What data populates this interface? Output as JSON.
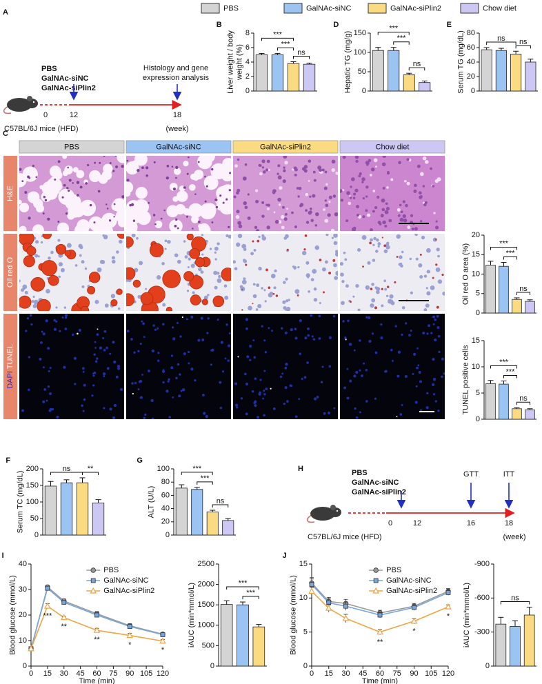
{
  "legend": [
    {
      "name": "PBS",
      "color": "#d4d4d4"
    },
    {
      "name": "GalNAc-siNC",
      "color": "#9cc4f2"
    },
    {
      "name": "GalNAc-siPlin2",
      "color": "#fbdb82"
    },
    {
      "name": "Chow diet",
      "color": "#cdc8f3"
    }
  ],
  "timeline_a": {
    "panel": "A",
    "groups": [
      {
        "name": "PBS",
        "color": "#a8a8a8"
      },
      {
        "name": "GalNAc-siNC",
        "color": "#7b8fd2"
      },
      {
        "name": "GalNAc-siPlin2",
        "color": "#c6ad6a"
      }
    ],
    "weeks": [
      0,
      12,
      18
    ],
    "event": [
      "Histology and gene",
      "expression analysis"
    ],
    "mice": "C57BL/6J mice (HFD)",
    "unit": "(week)"
  },
  "histology": {
    "panel": "C",
    "rows": [
      {
        "parts": [
          "H&E"
        ],
        "colors": [
          "#ffffff"
        ]
      },
      {
        "parts": [
          "Oil red O"
        ],
        "colors": [
          "#ffffff"
        ]
      },
      {
        "parts": [
          "DAPI",
          "TUNEL"
        ],
        "colors": [
          "#2a2ad6",
          "#ffffff"
        ]
      }
    ]
  },
  "timeline_h": {
    "panel": "H",
    "groups": [
      {
        "name": "PBS",
        "color": "#a8a8a8"
      },
      {
        "name": "GalNAc-siNC",
        "color": "#7b8fd2"
      },
      {
        "name": "GalNAc-siPlin2",
        "color": "#c6ad6a"
      }
    ],
    "weeks": [
      0,
      12,
      16,
      18
    ],
    "events": [
      "GTT",
      "ITT"
    ],
    "mice": "C57BL/6J mice (HFD)",
    "unit": "(week)"
  },
  "chart_data": [
    {
      "panel": "B",
      "type": "bar",
      "ylabel": [
        "Liver weight / body",
        "weight (%)"
      ],
      "values": [
        5.0,
        5.0,
        3.8,
        3.7
      ],
      "errors": [
        0.2,
        0.2,
        0.25,
        0.15
      ],
      "ylim": [
        0,
        8
      ],
      "yticks": [
        0,
        2,
        4,
        6,
        8
      ],
      "brackets": [
        {
          "label": "***",
          "pair": [
            0,
            2
          ]
        },
        {
          "label": "***",
          "pair": [
            1,
            2
          ]
        },
        {
          "label": "ns",
          "pair": [
            2,
            3
          ]
        }
      ]
    },
    {
      "panel": "D",
      "type": "bar",
      "ylabel": [
        "Hepatic TG (mg/g)"
      ],
      "values": [
        105,
        105,
        42,
        22
      ],
      "errors": [
        8,
        8,
        4,
        4
      ],
      "ylim": [
        0,
        150
      ],
      "yticks": [
        0,
        50,
        100,
        150
      ],
      "brackets": [
        {
          "label": "***",
          "pair": [
            0,
            2
          ]
        },
        {
          "label": "***",
          "pair": [
            1,
            2
          ]
        },
        {
          "label": "ns",
          "pair": [
            2,
            3
          ]
        }
      ]
    },
    {
      "panel": "E",
      "type": "bar",
      "ylabel": [
        "Serum TG (mg/dL)"
      ],
      "values": [
        57,
        56,
        51,
        40
      ],
      "errors": [
        3,
        3,
        4,
        4
      ],
      "ylim": [
        0,
        80
      ],
      "yticks": [
        0,
        20,
        40,
        60,
        80
      ],
      "brackets": [
        {
          "label": "ns",
          "pair": [
            0,
            2
          ]
        },
        {
          "label": "ns",
          "pair": [
            2,
            3
          ]
        }
      ]
    },
    {
      "type": "bar",
      "ylabel": [
        "Oil red O area (%)"
      ],
      "values": [
        12.3,
        12.0,
        3.5,
        3.0
      ],
      "errors": [
        1.0,
        1.0,
        0.4,
        0.4
      ],
      "ylim": [
        0,
        20
      ],
      "yticks": [
        0,
        5,
        10,
        15,
        20
      ],
      "brackets": [
        {
          "label": "***",
          "pair": [
            0,
            2
          ]
        },
        {
          "label": "***",
          "pair": [
            1,
            2
          ]
        },
        {
          "label": "ns",
          "pair": [
            2,
            3
          ]
        }
      ]
    },
    {
      "type": "bar",
      "ylabel": [
        "TUNEL positive cells"
      ],
      "values": [
        6.8,
        6.7,
        2.0,
        1.8
      ],
      "errors": [
        0.6,
        0.6,
        0.2,
        0.2
      ],
      "ylim": [
        0,
        15
      ],
      "yticks": [
        0,
        5,
        10,
        15
      ],
      "brackets": [
        {
          "label": "***",
          "pair": [
            0,
            2
          ]
        },
        {
          "label": "***",
          "pair": [
            1,
            2
          ]
        },
        {
          "label": "ns",
          "pair": [
            2,
            3
          ]
        }
      ]
    },
    {
      "panel": "F",
      "type": "bar",
      "ylabel": [
        "Serum TC (mg/dL)"
      ],
      "values": [
        148,
        158,
        158,
        97
      ],
      "errors": [
        14,
        9,
        15,
        10
      ],
      "ylim": [
        0,
        200
      ],
      "yticks": [
        0,
        50,
        100,
        150,
        200
      ],
      "brackets": [
        {
          "label": "ns",
          "pair": [
            0,
            2
          ]
        },
        {
          "label": "**",
          "pair": [
            2,
            3
          ]
        }
      ]
    },
    {
      "panel": "G",
      "type": "bar",
      "ylabel": [
        "ALT (U/L)"
      ],
      "values": [
        71,
        69,
        35,
        22
      ],
      "errors": [
        5,
        3,
        2.5,
        3
      ],
      "ylim": [
        0,
        100
      ],
      "yticks": [
        0,
        20,
        40,
        60,
        80,
        100
      ],
      "brackets": [
        {
          "label": "***",
          "pair": [
            0,
            2
          ]
        },
        {
          "label": "***",
          "pair": [
            1,
            2
          ]
        },
        {
          "label": "ns",
          "pair": [
            2,
            3
          ]
        }
      ]
    },
    {
      "panel": "I",
      "type": "line",
      "ylabel": "Blood glucose (mmol/L)",
      "xlabel": "Time (min)",
      "x": [
        0,
        15,
        30,
        60,
        90,
        120
      ],
      "xlim": [
        0,
        120
      ],
      "xticks": [
        0,
        15,
        30,
        45,
        60,
        75,
        90,
        105,
        120
      ],
      "ylim": [
        0,
        40
      ],
      "yticks": [
        0,
        10,
        20,
        30,
        40
      ],
      "series": [
        {
          "name": "PBS",
          "color": "#9a9a9a",
          "marker": "circle",
          "values": [
            6.8,
            31.0,
            25.5,
            20.5,
            15.8,
            12.5
          ],
          "errors": [
            0.3,
            0.6,
            0.8,
            0.9,
            0.8,
            0.5
          ]
        },
        {
          "name": "GalNAc-siNC",
          "color": "#78a6dc",
          "marker": "square",
          "values": [
            6.8,
            30.5,
            25.0,
            20.0,
            15.5,
            12.3
          ],
          "errors": [
            0.3,
            0.6,
            0.8,
            0.9,
            0.8,
            0.5
          ]
        },
        {
          "name": "GalNAc-siPlin2",
          "color": "#f0a442",
          "marker": "triangle",
          "values": [
            6.8,
            23.5,
            19.0,
            14.0,
            12.0,
            9.8
          ],
          "errors": [
            0.3,
            1.0,
            0.6,
            0.8,
            0.8,
            0.6
          ]
        }
      ],
      "annotations": [
        {
          "x": 15,
          "text": "***"
        },
        {
          "x": 30,
          "text": "**"
        },
        {
          "x": 60,
          "text": "**"
        },
        {
          "x": 90,
          "text": "*"
        },
        {
          "x": 120,
          "text": "*"
        }
      ]
    },
    {
      "type": "bar",
      "ylabel": [
        "iAUC (min*mmol/L)"
      ],
      "values": [
        1510,
        1500,
        960
      ],
      "errors": [
        90,
        70,
        60
      ],
      "ylim": [
        0,
        2500
      ],
      "yticks": [
        0,
        500,
        1000,
        1500,
        2000,
        2500
      ],
      "brackets": [
        {
          "label": "***",
          "pair": [
            0,
            2
          ]
        },
        {
          "label": "***",
          "pair": [
            1,
            2
          ]
        }
      ]
    },
    {
      "panel": "J",
      "type": "line",
      "ylabel": "Blood glucose (mmol/L)",
      "xlabel": "Time (min)",
      "x": [
        0,
        15,
        30,
        60,
        90,
        120
      ],
      "xlim": [
        0,
        120
      ],
      "xticks": [
        0,
        15,
        30,
        45,
        60,
        75,
        90,
        105,
        120
      ],
      "ylim": [
        0,
        15
      ],
      "yticks": [
        0,
        5,
        10,
        15
      ],
      "series": [
        {
          "name": "PBS",
          "color": "#9a9a9a",
          "marker": "circle",
          "values": [
            12.2,
            9.5,
            9.2,
            7.8,
            8.8,
            11.0
          ],
          "errors": [
            0.8,
            0.6,
            0.6,
            0.4,
            0.4,
            0.4
          ]
        },
        {
          "name": "GalNAc-siNC",
          "color": "#78a6dc",
          "marker": "square",
          "values": [
            12.0,
            9.3,
            8.8,
            7.5,
            8.6,
            10.8
          ],
          "errors": [
            0.8,
            0.6,
            0.6,
            0.4,
            0.4,
            0.4
          ]
        },
        {
          "name": "GalNAc-siPlin2",
          "color": "#f0a442",
          "marker": "triangle",
          "values": [
            11.0,
            8.5,
            7.0,
            5.0,
            6.6,
            8.7
          ],
          "errors": [
            0.5,
            0.6,
            0.6,
            0.4,
            0.4,
            0.3
          ]
        }
      ],
      "annotations": [
        {
          "x": 60,
          "text": "**"
        },
        {
          "x": 90,
          "text": "*"
        },
        {
          "x": 120,
          "text": "*"
        }
      ]
    },
    {
      "type": "bar",
      "ylabel": [
        "iAUC (min*mmol/L)"
      ],
      "values": [
        -370,
        -350,
        -450
      ],
      "errors": [
        60,
        50,
        70
      ],
      "ylim": [
        0,
        -900
      ],
      "yticks": [
        0,
        -300,
        -600,
        -900
      ],
      "brackets": [
        {
          "label": "ns",
          "pair": [
            0,
            2
          ]
        }
      ]
    }
  ]
}
